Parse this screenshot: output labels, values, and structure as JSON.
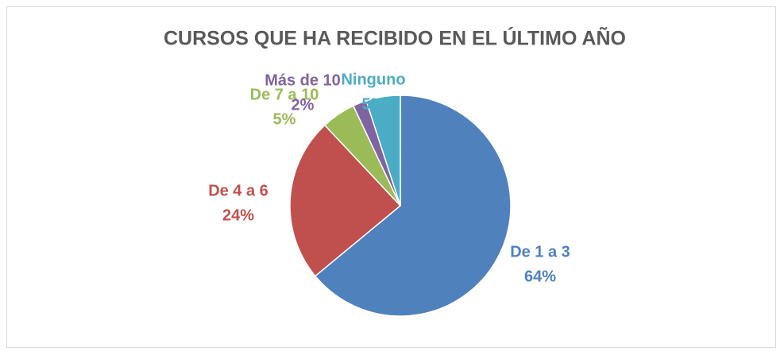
{
  "chart_data": {
    "type": "pie",
    "title": "CURSOS QUE HA RECIBIDO EN EL ÚLTIMO AÑO",
    "categories": [
      "De 1 a 3",
      "De 4 a 6",
      "De 7 a 10",
      "Más de 10",
      "Ninguno"
    ],
    "values": [
      64,
      24,
      5,
      2,
      5
    ],
    "value_labels": [
      "64%",
      "24%",
      "5%",
      "2%",
      "5%"
    ],
    "colors": [
      "#4f81bd",
      "#c0504d",
      "#9bbb59",
      "#8064a2",
      "#4bacc6"
    ]
  }
}
